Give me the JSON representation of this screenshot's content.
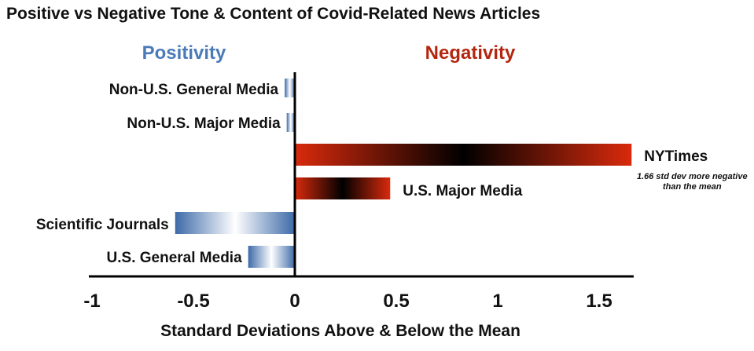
{
  "chart_data": {
    "type": "bar",
    "orientation": "horizontal",
    "title": "Positive vs Negative Tone & Content of Covid-Related News Articles",
    "xlabel": "Standard Deviations Above & Below the Mean",
    "ylabel": "",
    "xlim": [
      -1,
      1.6
    ],
    "xticks": [
      -1,
      -0.5,
      0,
      0.5,
      1,
      1.5
    ],
    "xtick_labels": [
      "-1",
      "-0.5",
      "0",
      "0.5",
      "1",
      "1.5"
    ],
    "grid": false,
    "left_region_label": "Positivity",
    "right_region_label": "Negativity",
    "categories": [
      "Non-U.S. General  Media",
      "Non-U.S. Major Media",
      "NYTimes",
      "U.S. Major Media",
      "Scientific Journals",
      "U.S. General Media"
    ],
    "values": [
      -0.05,
      -0.04,
      1.66,
      0.47,
      -0.59,
      -0.23
    ],
    "annotations": [
      {
        "category": "NYTimes",
        "lines": [
          "1.66 std dev more negative",
          "than the mean"
        ]
      }
    ],
    "colors": {
      "positive_dark": "#3d6aa8",
      "positive_light": "#ffffff",
      "negative_bright": "#d92a0c",
      "negative_dark": "#000000",
      "positivity_label": "#4a7ab8",
      "negativity_label": "#b3260f"
    }
  }
}
